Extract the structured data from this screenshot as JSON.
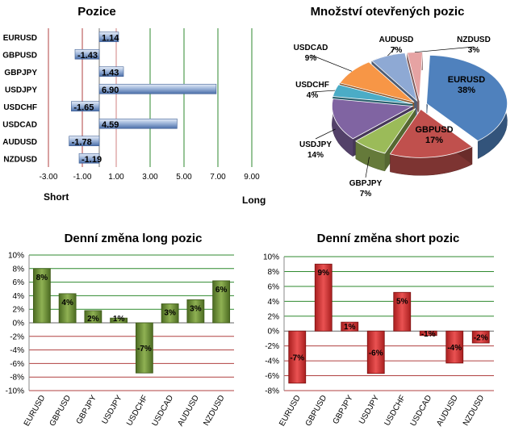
{
  "palette": {
    "positions_bar": "#8fa8cf",
    "long_bar": "#6d8f3a",
    "short_bar": "#d63434",
    "grid_green": "#2f8a2f",
    "grid_red": "#b04040"
  },
  "chart_data": [
    {
      "id": "positions",
      "type": "bar",
      "orientation": "horizontal",
      "title": "Pozice",
      "categories": [
        "EURUSD",
        "GBPUSD",
        "GBPJPY",
        "USDJPY",
        "USDCHF",
        "USDCAD",
        "AUDUSD",
        "NZDUSD"
      ],
      "values": [
        1.14,
        -1.43,
        1.43,
        6.9,
        -1.65,
        4.59,
        -1.78,
        -1.19
      ],
      "value_labels": [
        "1.14",
        "-1.43",
        "1.43",
        "6.90",
        "-1.65",
        "4.59",
        "-1.78",
        "-1.19"
      ],
      "xlim": [
        -3,
        9
      ],
      "xticks": [
        -3,
        -1,
        1,
        3,
        5,
        7,
        9
      ],
      "xtick_labels": [
        "-3.00",
        "-1.00",
        "1.00",
        "3.00",
        "5.00",
        "7.00",
        "9.00"
      ],
      "left_label": "Short",
      "right_label": "Long",
      "grid": true
    },
    {
      "id": "open_positions",
      "type": "pie",
      "title": "Množství otevřených pozic",
      "slices": [
        {
          "label": "EURUSD",
          "percent_label": "38%",
          "value": 38,
          "color": "#4f81bd"
        },
        {
          "label": "GBPUSD",
          "percent_label": "17%",
          "value": 17,
          "color": "#c0504d"
        },
        {
          "label": "GBPJPY",
          "percent_label": "7%",
          "value": 7,
          "color": "#9bbb59"
        },
        {
          "label": "USDJPY",
          "percent_label": "14%",
          "value": 14,
          "color": "#8064a2"
        },
        {
          "label": "USDCHF",
          "percent_label": "4%",
          "value": 4,
          "color": "#4bacc6"
        },
        {
          "label": "USDCAD",
          "percent_label": "9%",
          "value": 9,
          "color": "#f79646"
        },
        {
          "label": "AUDUSD",
          "percent_label": "7%",
          "value": 7,
          "color": "#8ea9d4"
        },
        {
          "label": "NZDUSD",
          "percent_label": "3%",
          "value": 3,
          "color": "#e6a3a3"
        }
      ]
    },
    {
      "id": "daily_long",
      "type": "bar",
      "title": "Denní změna long pozic",
      "categories": [
        "EURUSD",
        "GBPUSD",
        "GBPJPY",
        "USDJPY",
        "USDCHF",
        "USDCAD",
        "AUDUSD",
        "NZDUSD"
      ],
      "values": [
        8,
        4.3,
        1.8,
        0.7,
        -7.4,
        2.8,
        3.4,
        6.2
      ],
      "value_labels": [
        "8%",
        "4%",
        "2%",
        "1%",
        "-7%",
        "3%",
        "3%",
        "6%"
      ],
      "ylim": [
        -10,
        10
      ],
      "yticks": [
        -10,
        -8,
        -6,
        -4,
        -2,
        0,
        2,
        4,
        6,
        8,
        10
      ],
      "ytick_labels": [
        "-10%",
        "-8%",
        "-6%",
        "-4%",
        "-2%",
        "0%",
        "2%",
        "4%",
        "6%",
        "8%",
        "10%"
      ],
      "grid": true
    },
    {
      "id": "daily_short",
      "type": "bar",
      "title": "Denní změna short pozic",
      "categories": [
        "EURUSD",
        "GBPUSD",
        "GBPJPY",
        "USDJPY",
        "USDCHF",
        "USDCAD",
        "AUDUSD",
        "NZDUSD"
      ],
      "values": [
        -7,
        9,
        1.2,
        -5.7,
        5.2,
        -0.6,
        -4.3,
        -1.6
      ],
      "value_labels": [
        "-7%",
        "9%",
        "1%",
        "-6%",
        "5%",
        "-1%",
        "-4%",
        "-2%"
      ],
      "ylim": [
        -8,
        10
      ],
      "yticks": [
        -8,
        -6,
        -4,
        -2,
        0,
        2,
        4,
        6,
        8,
        10
      ],
      "ytick_labels": [
        "-8%",
        "-6%",
        "-4%",
        "-2%",
        "0%",
        "2%",
        "4%",
        "6%",
        "8%",
        "10%"
      ],
      "grid": true
    }
  ]
}
